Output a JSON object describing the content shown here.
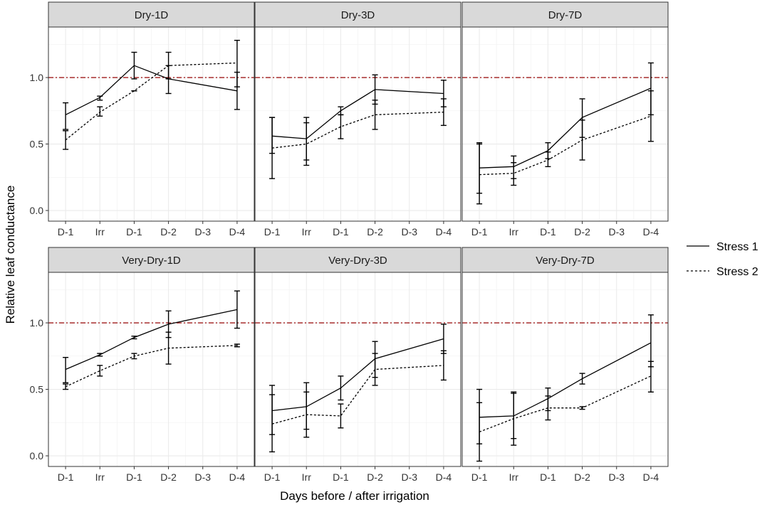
{
  "chart_data": {
    "type": "line",
    "layout": "facet-grid",
    "facet_rows": 2,
    "facet_cols": 3,
    "xlabel": "Days before / after irrigation",
    "ylabel": "Relative leaf conductance",
    "categories": [
      "D-1",
      "Irr",
      "D-1",
      "D-2",
      "D-3",
      "D-4"
    ],
    "yticks": [
      0.0,
      0.5,
      1.0
    ],
    "ytick_labels": [
      "0.0",
      "0.5",
      "1.0"
    ],
    "ylim": [
      -0.08,
      1.38
    ],
    "reference_line": {
      "y": 1.0,
      "color": "#a01a1a",
      "style": "dot-dash"
    },
    "legend": {
      "position": "right",
      "entries": [
        {
          "name": "Stress 1",
          "style": "solid"
        },
        {
          "name": "Stress 2",
          "style": "dashed"
        }
      ]
    },
    "colors": {
      "line": "#000000",
      "strip_fill": "#d9d9d9",
      "grid": "#ebebeb",
      "panel_border": "#333333",
      "reference": "#a01a1a"
    },
    "panels": [
      {
        "title": "Dry-1D",
        "series": [
          {
            "name": "Stress 1",
            "style": "solid",
            "points": [
              {
                "x": 0,
                "y": 0.72,
                "lo": 0.61,
                "hi": 0.81
              },
              {
                "x": 1,
                "y": 0.85,
                "lo": 0.83,
                "hi": 0.86
              },
              {
                "x": 2,
                "y": 1.09,
                "lo": 0.99,
                "hi": 1.19
              },
              {
                "x": 3,
                "y": 0.99,
                "lo": 0.88,
                "hi": 1.09
              },
              {
                "x": 5,
                "y": 0.9,
                "lo": 0.76,
                "hi": 1.04
              }
            ]
          },
          {
            "name": "Stress 2",
            "style": "dashed",
            "points": [
              {
                "x": 0,
                "y": 0.53,
                "lo": 0.46,
                "hi": 0.6
              },
              {
                "x": 1,
                "y": 0.74,
                "lo": 0.71,
                "hi": 0.78
              },
              {
                "x": 2,
                "y": 0.9,
                "lo": 0.9,
                "hi": 0.9
              },
              {
                "x": 3,
                "y": 1.09,
                "lo": 0.99,
                "hi": 1.19
              },
              {
                "x": 5,
                "y": 1.11,
                "lo": 0.93,
                "hi": 1.28
              }
            ]
          }
        ]
      },
      {
        "title": "Dry-3D",
        "series": [
          {
            "name": "Stress 1",
            "style": "solid",
            "points": [
              {
                "x": 0,
                "y": 0.56,
                "lo": 0.43,
                "hi": 0.7
              },
              {
                "x": 1,
                "y": 0.54,
                "lo": 0.38,
                "hi": 0.7
              },
              {
                "x": 2,
                "y": 0.75,
                "lo": 0.72,
                "hi": 0.78
              },
              {
                "x": 3,
                "y": 0.91,
                "lo": 0.8,
                "hi": 1.02
              },
              {
                "x": 5,
                "y": 0.88,
                "lo": 0.78,
                "hi": 0.98
              }
            ]
          },
          {
            "name": "Stress 2",
            "style": "dashed",
            "points": [
              {
                "x": 0,
                "y": 0.47,
                "lo": 0.24,
                "hi": 0.7
              },
              {
                "x": 1,
                "y": 0.5,
                "lo": 0.34,
                "hi": 0.66
              },
              {
                "x": 2,
                "y": 0.63,
                "lo": 0.54,
                "hi": 0.72
              },
              {
                "x": 3,
                "y": 0.72,
                "lo": 0.61,
                "hi": 0.83
              },
              {
                "x": 5,
                "y": 0.74,
                "lo": 0.64,
                "hi": 0.84
              }
            ]
          }
        ]
      },
      {
        "title": "Dry-7D",
        "series": [
          {
            "name": "Stress 1",
            "style": "solid",
            "points": [
              {
                "x": 0,
                "y": 0.32,
                "lo": 0.13,
                "hi": 0.51
              },
              {
                "x": 1,
                "y": 0.33,
                "lo": 0.24,
                "hi": 0.41
              },
              {
                "x": 2,
                "y": 0.45,
                "lo": 0.39,
                "hi": 0.51
              },
              {
                "x": 3,
                "y": 0.7,
                "lo": 0.55,
                "hi": 0.84
              },
              {
                "x": 5,
                "y": 0.92,
                "lo": 0.72,
                "hi": 1.11
              }
            ]
          },
          {
            "name": "Stress 2",
            "style": "dashed",
            "points": [
              {
                "x": 0,
                "y": 0.27,
                "lo": 0.05,
                "hi": 0.5
              },
              {
                "x": 1,
                "y": 0.28,
                "lo": 0.19,
                "hi": 0.36
              },
              {
                "x": 2,
                "y": 0.38,
                "lo": 0.33,
                "hi": 0.44
              },
              {
                "x": 3,
                "y": 0.53,
                "lo": 0.38,
                "hi": 0.68
              },
              {
                "x": 5,
                "y": 0.71,
                "lo": 0.52,
                "hi": 0.9
              }
            ]
          }
        ]
      },
      {
        "title": "Very-Dry-1D",
        "series": [
          {
            "name": "Stress 1",
            "style": "solid",
            "points": [
              {
                "x": 0,
                "y": 0.65,
                "lo": 0.55,
                "hi": 0.74
              },
              {
                "x": 1,
                "y": 0.76,
                "lo": 0.75,
                "hi": 0.77
              },
              {
                "x": 2,
                "y": 0.89,
                "lo": 0.88,
                "hi": 0.9
              },
              {
                "x": 3,
                "y": 0.99,
                "lo": 0.89,
                "hi": 1.09
              },
              {
                "x": 5,
                "y": 1.1,
                "lo": 0.96,
                "hi": 1.24
              }
            ]
          },
          {
            "name": "Stress 2",
            "style": "dashed",
            "points": [
              {
                "x": 0,
                "y": 0.52,
                "lo": 0.5,
                "hi": 0.54
              },
              {
                "x": 1,
                "y": 0.64,
                "lo": 0.6,
                "hi": 0.68
              },
              {
                "x": 2,
                "y": 0.75,
                "lo": 0.73,
                "hi": 0.77
              },
              {
                "x": 3,
                "y": 0.81,
                "lo": 0.69,
                "hi": 0.93
              },
              {
                "x": 5,
                "y": 0.83,
                "lo": 0.82,
                "hi": 0.84
              }
            ]
          }
        ]
      },
      {
        "title": "Very-Dry-3D",
        "series": [
          {
            "name": "Stress 1",
            "style": "solid",
            "points": [
              {
                "x": 0,
                "y": 0.34,
                "lo": 0.16,
                "hi": 0.53
              },
              {
                "x": 1,
                "y": 0.37,
                "lo": 0.2,
                "hi": 0.55
              },
              {
                "x": 2,
                "y": 0.51,
                "lo": 0.42,
                "hi": 0.6
              },
              {
                "x": 3,
                "y": 0.73,
                "lo": 0.59,
                "hi": 0.86
              },
              {
                "x": 5,
                "y": 0.88,
                "lo": 0.77,
                "hi": 0.99
              }
            ]
          },
          {
            "name": "Stress 2",
            "style": "dashed",
            "points": [
              {
                "x": 0,
                "y": 0.24,
                "lo": 0.03,
                "hi": 0.46
              },
              {
                "x": 1,
                "y": 0.31,
                "lo": 0.14,
                "hi": 0.48
              },
              {
                "x": 2,
                "y": 0.3,
                "lo": 0.21,
                "hi": 0.39
              },
              {
                "x": 3,
                "y": 0.65,
                "lo": 0.53,
                "hi": 0.77
              },
              {
                "x": 5,
                "y": 0.68,
                "lo": 0.57,
                "hi": 0.79
              }
            ]
          }
        ]
      },
      {
        "title": "Very-Dry-7D",
        "series": [
          {
            "name": "Stress 1",
            "style": "solid",
            "points": [
              {
                "x": 0,
                "y": 0.29,
                "lo": 0.09,
                "hi": 0.5
              },
              {
                "x": 1,
                "y": 0.3,
                "lo": 0.13,
                "hi": 0.48
              },
              {
                "x": 2,
                "y": 0.43,
                "lo": 0.34,
                "hi": 0.51
              },
              {
                "x": 3,
                "y": 0.58,
                "lo": 0.54,
                "hi": 0.62
              },
              {
                "x": 5,
                "y": 0.85,
                "lo": 0.67,
                "hi": 1.06
              }
            ]
          },
          {
            "name": "Stress 2",
            "style": "dashed",
            "points": [
              {
                "x": 0,
                "y": 0.18,
                "lo": -0.04,
                "hi": 0.4
              },
              {
                "x": 1,
                "y": 0.28,
                "lo": 0.08,
                "hi": 0.47
              },
              {
                "x": 2,
                "y": 0.36,
                "lo": 0.27,
                "hi": 0.45
              },
              {
                "x": 3,
                "y": 0.36,
                "lo": 0.35,
                "hi": 0.37
              },
              {
                "x": 5,
                "y": 0.6,
                "lo": 0.48,
                "hi": 0.71
              }
            ]
          }
        ]
      }
    ]
  }
}
